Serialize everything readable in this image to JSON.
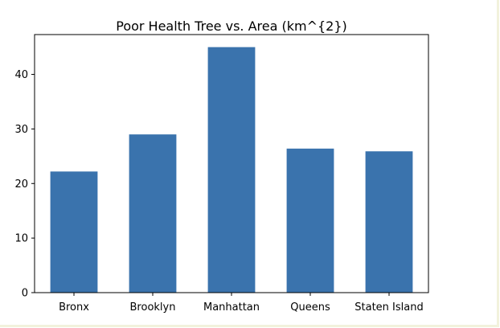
{
  "chart_data": {
    "type": "bar",
    "title": "Poor Health Tree vs. Area (km^{2})",
    "xlabel": "",
    "ylabel": "",
    "categories": [
      "Bronx",
      "Brooklyn",
      "Manhattan",
      "Queens",
      "Staten Island"
    ],
    "values": [
      22.2,
      29.0,
      45.0,
      26.4,
      25.9
    ],
    "ylim": [
      0,
      47.3
    ],
    "yticks": [
      0,
      10,
      20,
      30,
      40
    ],
    "grid": false,
    "bar_color": "#3a73ad"
  }
}
